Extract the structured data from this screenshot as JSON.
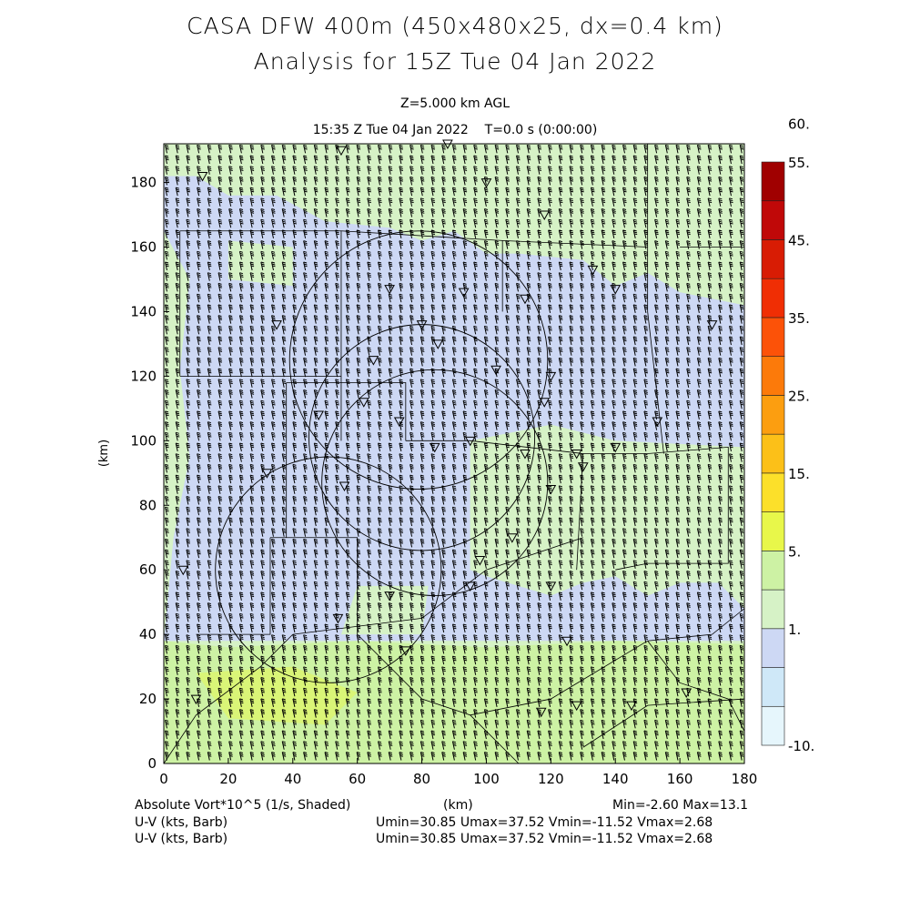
{
  "header": {
    "title_line1": "CASA DFW 400m (450x480x25, dx=0.4 km)",
    "title_line2": "Analysis for 15Z Tue 04 Jan 2022",
    "level": "Z=5.000 km AGL",
    "valid_time": "15:35 Z Tue 04 Jan 2022",
    "forecast_time": "T=0.0 s (0:00:00)"
  },
  "footer": {
    "field_label": "Absolute Vort*10^5 (1/s, Shaded)",
    "x_unit": "(km)",
    "minmax": "Min=-2.60 Max=13.1",
    "vector_label_1": "U-V (kts, Barb)",
    "vector_stats_1": "Umin=30.85 Umax=37.52 Vmin=-11.52 Vmax=2.68",
    "vector_label_2": "U-V (kts, Barb)",
    "vector_stats_2": "Umin=30.85 Umax=37.52 Vmin=-11.52 Vmax=2.68"
  },
  "chart_data": {
    "type": "heatmap",
    "field": "Absolute Vorticity",
    "units": "10^-5 1/s",
    "field_min": -2.6,
    "field_max": 13.1,
    "xlabel": "(km)",
    "ylabel": "(km)",
    "xlim": [
      0,
      180
    ],
    "ylim": [
      0,
      192
    ],
    "x_ticks": [
      "0",
      "20",
      "40",
      "60",
      "80",
      "100",
      "120",
      "140",
      "160",
      "180"
    ],
    "y_ticks": [
      "0",
      "20",
      "40",
      "60",
      "80",
      "100",
      "120",
      "140",
      "160",
      "180"
    ],
    "colorbar": {
      "labels": [
        "-10.",
        "1.",
        "5.",
        "15.",
        "25.",
        "35.",
        "45.",
        "55.",
        "60."
      ],
      "levels": [
        -10,
        -1,
        1,
        3,
        5,
        10,
        15,
        20,
        25,
        30,
        35,
        40,
        45,
        50,
        55,
        60
      ],
      "colors": [
        "#e6f6fc",
        "#cfe8f8",
        "#cdd8f4",
        "#d6f2c6",
        "#cdf2a4",
        "#e8f74a",
        "#fce02a",
        "#fcc018",
        "#fc9e10",
        "#fc7a0a",
        "#fc5208",
        "#f02e04",
        "#d81c04",
        "#c00808",
        "#a00000"
      ]
    },
    "regions_description": "Large area values ~1-3 (light blue) in center, 3-5 (light green) across north and east, 5-10 (yellow-green) in south strip y<35 km",
    "vectors": {
      "type": "wind barbs",
      "u_min": 30.85,
      "u_max": 37.52,
      "v_min": -11.52,
      "v_max": 2.68,
      "units": "kts"
    },
    "radar_rings_km": [
      {
        "cx": 79,
        "cy": 125,
        "r": 40
      },
      {
        "cx": 80,
        "cy": 101,
        "r": 35
      },
      {
        "cx": 84,
        "cy": 87,
        "r": 35
      },
      {
        "cx": 51,
        "cy": 60,
        "r": 35
      }
    ]
  }
}
